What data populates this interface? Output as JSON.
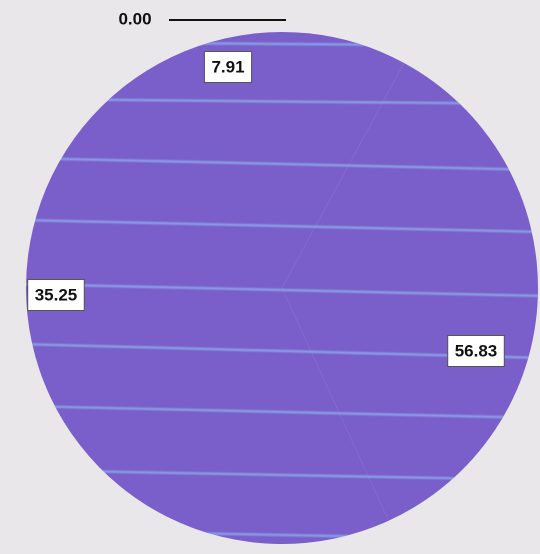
{
  "chart_data": {
    "type": "pie",
    "values": [
      0.0,
      7.91,
      35.25,
      56.83
    ],
    "value_labels": [
      "0.00",
      "7.91",
      "35.25",
      "56.83"
    ],
    "color": "#7a5ec9"
  }
}
